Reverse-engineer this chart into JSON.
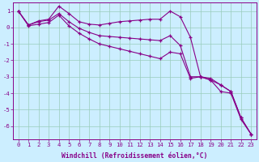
{
  "xlabel": "Windchill (Refroidissement éolien,°C)",
  "xlim": [
    -0.5,
    23.5
  ],
  "ylim": [
    -6.8,
    1.5
  ],
  "yticks": [
    1,
    0,
    -1,
    -2,
    -3,
    -4,
    -5,
    -6
  ],
  "xticks": [
    0,
    1,
    2,
    3,
    4,
    5,
    6,
    7,
    8,
    9,
    10,
    11,
    12,
    13,
    14,
    15,
    16,
    17,
    18,
    19,
    20,
    21,
    22,
    23
  ],
  "bg_color": "#cceeff",
  "line_color": "#880088",
  "grid_color": "#99ccbb",
  "series1_x": [
    0,
    1,
    2,
    3,
    4,
    5,
    6,
    7,
    8,
    9,
    10,
    11,
    12,
    13,
    14,
    15,
    16,
    17,
    18,
    19,
    20,
    21,
    22,
    23
  ],
  "series1_y": [
    1.0,
    0.15,
    0.4,
    0.5,
    1.3,
    0.85,
    0.35,
    0.2,
    0.15,
    0.25,
    0.35,
    0.4,
    0.45,
    0.5,
    0.5,
    1.0,
    0.65,
    -0.6,
    -3.0,
    -3.1,
    -3.5,
    -3.9,
    -5.5,
    -6.5
  ],
  "series2_x": [
    0,
    1,
    2,
    3,
    4,
    5,
    6,
    7,
    8,
    9,
    10,
    11,
    12,
    13,
    14,
    15,
    16,
    17,
    18,
    19,
    20,
    21,
    22,
    23
  ],
  "series2_y": [
    1.0,
    0.15,
    0.35,
    0.45,
    0.85,
    0.35,
    -0.05,
    -0.3,
    -0.5,
    -0.55,
    -0.6,
    -0.65,
    -0.7,
    -0.75,
    -0.8,
    -0.5,
    -1.1,
    -3.0,
    -3.0,
    -3.2,
    -3.5,
    -3.9,
    -5.5,
    -6.5
  ],
  "series3_x": [
    0,
    1,
    2,
    3,
    4,
    5,
    6,
    7,
    8,
    9,
    10,
    11,
    12,
    13,
    14,
    15,
    16,
    17,
    18,
    19,
    20,
    21,
    22,
    23
  ],
  "series3_y": [
    1.0,
    0.1,
    0.2,
    0.3,
    0.75,
    0.1,
    -0.35,
    -0.7,
    -1.0,
    -1.15,
    -1.3,
    -1.45,
    -1.6,
    -1.75,
    -1.9,
    -1.5,
    -1.6,
    -3.1,
    -3.0,
    -3.2,
    -3.9,
    -4.0,
    -5.6,
    -6.5
  ]
}
